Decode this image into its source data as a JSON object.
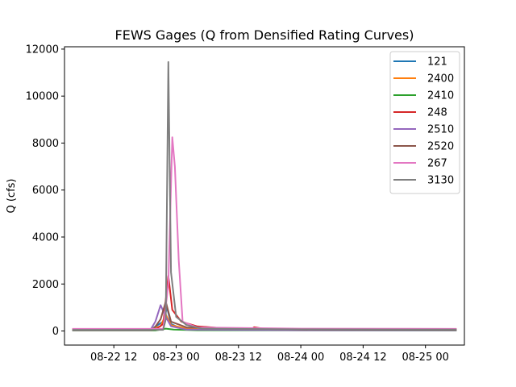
{
  "chart_data": {
    "type": "line",
    "title": "FEWS Gages (Q from Densified Rating Curves)",
    "xlabel": "",
    "ylabel": "Q (cfs)",
    "x_axis": {
      "type": "datetime",
      "range": [
        "2022-08-22T02:30",
        "2022-08-25T07:30"
      ],
      "ticks": [
        {
          "value": "2022-08-22T12:00",
          "label": "08-22 12"
        },
        {
          "value": "2022-08-23T00:00",
          "label": "08-23 00"
        },
        {
          "value": "2022-08-23T12:00",
          "label": "08-23 12"
        },
        {
          "value": "2022-08-24T00:00",
          "label": "08-24 00"
        },
        {
          "value": "2022-08-24T12:00",
          "label": "08-24 12"
        },
        {
          "value": "2022-08-25T00:00",
          "label": "08-25 00"
        }
      ]
    },
    "y_axis": {
      "range": [
        -600,
        12100
      ],
      "ticks": [
        0,
        2000,
        4000,
        6000,
        8000,
        10000,
        12000
      ]
    },
    "grid": false,
    "legend_position": "top-right",
    "series": [
      {
        "name": "121",
        "color": "#1f77b4",
        "points": [
          [
            "2022-08-22T04:00",
            50
          ],
          [
            "2022-08-22T19:00",
            50
          ],
          [
            "2022-08-22T21:30",
            400
          ],
          [
            "2022-08-22T22:15",
            1000
          ],
          [
            "2022-08-22T23:00",
            300
          ],
          [
            "2022-08-23T01:00",
            100
          ],
          [
            "2022-08-23T12:00",
            60
          ],
          [
            "2022-08-24T12:00",
            55
          ],
          [
            "2022-08-25T06:00",
            55
          ]
        ]
      },
      {
        "name": "2400",
        "color": "#ff7f0e",
        "points": [
          [
            "2022-08-22T04:00",
            80
          ],
          [
            "2022-08-22T19:00",
            80
          ],
          [
            "2022-08-22T21:00",
            200
          ],
          [
            "2022-08-22T22:00",
            700
          ],
          [
            "2022-08-22T23:00",
            250
          ],
          [
            "2022-08-23T02:00",
            100
          ],
          [
            "2022-08-24T00:00",
            80
          ],
          [
            "2022-08-25T06:00",
            75
          ]
        ]
      },
      {
        "name": "2410",
        "color": "#2ca02c",
        "points": [
          [
            "2022-08-22T04:00",
            20
          ],
          [
            "2022-08-22T20:00",
            20
          ],
          [
            "2022-08-22T22:00",
            100
          ],
          [
            "2022-08-22T23:30",
            60
          ],
          [
            "2022-08-23T04:00",
            30
          ],
          [
            "2022-08-25T06:00",
            20
          ]
        ]
      },
      {
        "name": "248",
        "color": "#d62728",
        "points": [
          [
            "2022-08-22T04:00",
            60
          ],
          [
            "2022-08-22T20:00",
            60
          ],
          [
            "2022-08-22T21:30",
            300
          ],
          [
            "2022-08-22T22:30",
            2350
          ],
          [
            "2022-08-22T23:15",
            900
          ],
          [
            "2022-08-23T01:00",
            400
          ],
          [
            "2022-08-23T04:00",
            200
          ],
          [
            "2022-08-23T10:00",
            100
          ],
          [
            "2022-08-23T14:30",
            80
          ],
          [
            "2022-08-23T15:00",
            160
          ],
          [
            "2022-08-23T17:00",
            90
          ],
          [
            "2022-08-24T00:00",
            70
          ],
          [
            "2022-08-25T06:00",
            60
          ]
        ]
      },
      {
        "name": "2510",
        "color": "#9467bd",
        "points": [
          [
            "2022-08-22T04:00",
            30
          ],
          [
            "2022-08-22T19:00",
            30
          ],
          [
            "2022-08-22T20:00",
            400
          ],
          [
            "2022-08-22T21:00",
            1100
          ],
          [
            "2022-08-22T22:00",
            600
          ],
          [
            "2022-08-22T23:00",
            200
          ],
          [
            "2022-08-23T02:00",
            60
          ],
          [
            "2022-08-24T00:00",
            30
          ],
          [
            "2022-08-25T06:00",
            30
          ]
        ]
      },
      {
        "name": "2520",
        "color": "#8c564b",
        "points": [
          [
            "2022-08-22T04:00",
            40
          ],
          [
            "2022-08-22T19:30",
            40
          ],
          [
            "2022-08-22T21:00",
            500
          ],
          [
            "2022-08-22T22:00",
            1250
          ],
          [
            "2022-08-22T23:00",
            400
          ],
          [
            "2022-08-23T02:00",
            150
          ],
          [
            "2022-08-24T00:00",
            60
          ],
          [
            "2022-08-25T06:00",
            50
          ]
        ]
      },
      {
        "name": "267",
        "color": "#e377c2",
        "points": [
          [
            "2022-08-22T04:00",
            90
          ],
          [
            "2022-08-22T21:30",
            90
          ],
          [
            "2022-08-22T22:30",
            2000
          ],
          [
            "2022-08-22T23:15",
            8250
          ],
          [
            "2022-08-22T23:45",
            7000
          ],
          [
            "2022-08-23T00:30",
            3000
          ],
          [
            "2022-08-23T01:15",
            400
          ],
          [
            "2022-08-23T04:00",
            150
          ],
          [
            "2022-08-24T00:00",
            100
          ],
          [
            "2022-08-25T06:00",
            90
          ]
        ]
      },
      {
        "name": "3130",
        "color": "#7f7f7f",
        "points": [
          [
            "2022-08-22T04:00",
            50
          ],
          [
            "2022-08-22T21:30",
            50
          ],
          [
            "2022-08-22T22:00",
            500
          ],
          [
            "2022-08-22T22:30",
            11450
          ],
          [
            "2022-08-22T23:00",
            2500
          ],
          [
            "2022-08-23T00:00",
            600
          ],
          [
            "2022-08-23T02:00",
            250
          ],
          [
            "2022-08-23T05:00",
            100
          ],
          [
            "2022-08-24T00:00",
            70
          ],
          [
            "2022-08-25T06:00",
            60
          ]
        ]
      }
    ]
  }
}
